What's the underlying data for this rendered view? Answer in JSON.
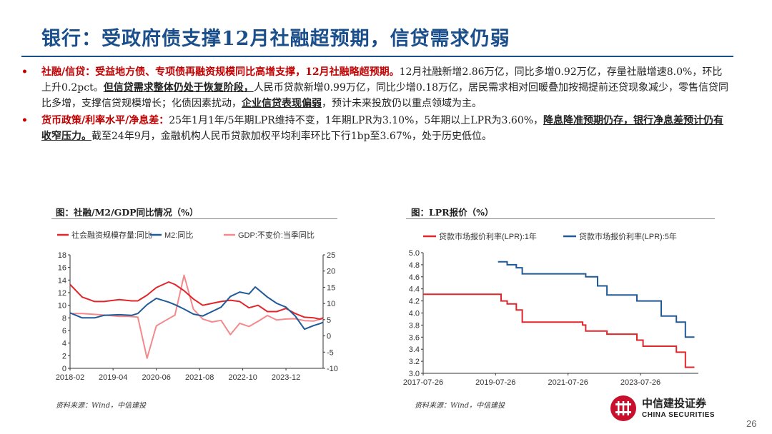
{
  "title": "银行：受政府债支撑12月社融超预期，信贷需求仍弱",
  "bullets": [
    {
      "head": "社融/信贷：受益地方债、专项债再融资规模同比高增支撑，12月社融略超预期。",
      "body1": "12月社融新增2.86万亿，同比多增0.92万亿，存量社融增速8.0%，环比上升0.2pct。",
      "emph1": "但信贷需求整体仍处于恢复阶段，",
      "body2": "人民币贷款新增0.99万亿，同比少增0.18万亿，居民需求相对回暖叠加按揭提前还贷现象减少，零售信贷同比多增，支撑信贷规模增长；化债因素扰动，",
      "emph2": "企业信贷表现偏弱",
      "body3": "，预计未来投放仍以重点领域为主。"
    },
    {
      "head": "货币政策/利率水平/净息差：",
      "body1": "25年1月1年/5年期LPR维持不变，1年期LPR为3.10%，5年期以上LPR为3.60%，",
      "emph1": "降息降准预期仍存，银行净息差预计仍有收窄压力。",
      "body2": "截至24年9月，金融机构人民币贷款加权平均利率环比下行1bp至3.67%，处于历史低位。"
    }
  ],
  "left_chart": {
    "caption": "图：社融/M2/GDP同比情况（%）",
    "source": "资料来源：Wind，中信建投"
  },
  "right_chart": {
    "caption": "图：LPR报价（%）",
    "source": "资料来源：Wind，中信建投"
  },
  "logo": {
    "cn": "中信建投证券",
    "en": "CHINA SECURITIES"
  },
  "page_number": "26",
  "colors": {
    "red": "#e0262b",
    "blue": "#1f5a96",
    "pink": "#f4898c",
    "title": "#1a4f8c"
  },
  "chart_data": [
    {
      "type": "line",
      "title": "",
      "x_tick_labels": [
        "2018-02",
        "2019-04",
        "2020-06",
        "2021-08",
        "2022-10",
        "2023-12"
      ],
      "x_range": [
        "2018-02",
        "2024-12"
      ],
      "y_left": {
        "ticks": [
          0,
          2,
          4,
          6,
          8,
          10,
          12,
          14,
          16,
          18
        ],
        "range": [
          0,
          18
        ]
      },
      "y_right": {
        "ticks": [
          -10,
          -5,
          0,
          5,
          10,
          15,
          20,
          25
        ],
        "range": [
          -10,
          25
        ]
      },
      "legend_position": "top",
      "series": [
        {
          "name": "社会融资规模存量:同比",
          "axis": "left",
          "color": "#e0262b",
          "points": [
            [
              "2018-02",
              13.3
            ],
            [
              "2018-06",
              11.3
            ],
            [
              "2018-10",
              10.6
            ],
            [
              "2019-01",
              10.6
            ],
            [
              "2019-06",
              10.9
            ],
            [
              "2019-10",
              10.7
            ],
            [
              "2019-12",
              10.7
            ],
            [
              "2020-03",
              11.6
            ],
            [
              "2020-06",
              12.8
            ],
            [
              "2020-10",
              13.7
            ],
            [
              "2020-12",
              13.3
            ],
            [
              "2021-03",
              12.3
            ],
            [
              "2021-06",
              11.0
            ],
            [
              "2021-09",
              10.0
            ],
            [
              "2021-12",
              10.3
            ],
            [
              "2022-03",
              10.6
            ],
            [
              "2022-06",
              10.8
            ],
            [
              "2022-09",
              10.6
            ],
            [
              "2022-12",
              9.6
            ],
            [
              "2023-03",
              10.0
            ],
            [
              "2023-06",
              9.0
            ],
            [
              "2023-09",
              9.0
            ],
            [
              "2023-12",
              9.5
            ],
            [
              "2024-03",
              8.7
            ],
            [
              "2024-06",
              8.1
            ],
            [
              "2024-09",
              8.0
            ],
            [
              "2024-11",
              7.8
            ],
            [
              "2024-12",
              8.0
            ]
          ]
        },
        {
          "name": "M2:同比",
          "axis": "left",
          "color": "#1f5a96",
          "points": [
            [
              "2018-02",
              8.8
            ],
            [
              "2018-06",
              8.0
            ],
            [
              "2018-10",
              8.0
            ],
            [
              "2019-01",
              8.4
            ],
            [
              "2019-06",
              8.5
            ],
            [
              "2019-10",
              8.4
            ],
            [
              "2019-12",
              8.7
            ],
            [
              "2020-03",
              10.1
            ],
            [
              "2020-06",
              11.1
            ],
            [
              "2020-10",
              10.5
            ],
            [
              "2020-12",
              10.1
            ],
            [
              "2021-03",
              9.4
            ],
            [
              "2021-06",
              8.6
            ],
            [
              "2021-09",
              8.3
            ],
            [
              "2021-12",
              9.0
            ],
            [
              "2022-03",
              9.7
            ],
            [
              "2022-06",
              11.4
            ],
            [
              "2022-09",
              12.1
            ],
            [
              "2022-12",
              11.8
            ],
            [
              "2023-02",
              12.9
            ],
            [
              "2023-06",
              11.3
            ],
            [
              "2023-09",
              10.3
            ],
            [
              "2023-12",
              9.7
            ],
            [
              "2024-03",
              8.3
            ],
            [
              "2024-06",
              6.2
            ],
            [
              "2024-09",
              6.8
            ],
            [
              "2024-11",
              7.1
            ],
            [
              "2024-12",
              7.3
            ]
          ]
        },
        {
          "name": "GDP:不变价:当季同比",
          "axis": "right",
          "color": "#f4898c",
          "points": [
            [
              "2018-03",
              6.9
            ],
            [
              "2018-06",
              6.9
            ],
            [
              "2018-09",
              6.7
            ],
            [
              "2018-12",
              6.5
            ],
            [
              "2019-03",
              6.3
            ],
            [
              "2019-06",
              6.0
            ],
            [
              "2019-09",
              6.0
            ],
            [
              "2019-12",
              5.8
            ],
            [
              "2020-03",
              -6.9
            ],
            [
              "2020-06",
              3.1
            ],
            [
              "2020-09",
              4.8
            ],
            [
              "2020-12",
              6.4
            ],
            [
              "2021-03",
              18.7
            ],
            [
              "2021-06",
              8.3
            ],
            [
              "2021-09",
              5.2
            ],
            [
              "2021-12",
              4.3
            ],
            [
              "2022-03",
              4.8
            ],
            [
              "2022-06",
              0.4
            ],
            [
              "2022-09",
              3.9
            ],
            [
              "2022-12",
              2.9
            ],
            [
              "2023-03",
              4.5
            ],
            [
              "2023-06",
              6.3
            ],
            [
              "2023-09",
              4.9
            ],
            [
              "2023-12",
              5.2
            ],
            [
              "2024-03",
              5.3
            ],
            [
              "2024-06",
              4.7
            ],
            [
              "2024-09",
              4.6
            ],
            [
              "2024-12",
              5.4
            ]
          ]
        }
      ]
    },
    {
      "type": "line",
      "title": "",
      "x_tick_labels": [
        "2017-07-26",
        "2019-07-26",
        "2021-07-26",
        "2023-07-26"
      ],
      "x_range": [
        "2017-07-26",
        "2025-03-01"
      ],
      "y": {
        "ticks": [
          3.0,
          3.2,
          3.4,
          3.6,
          3.8,
          4.0,
          4.2,
          4.4,
          4.6,
          4.8,
          5.0
        ],
        "range": [
          3.0,
          5.0
        ]
      },
      "legend_position": "top",
      "series": [
        {
          "name": "贷款市场报价利率(LPR):1年",
          "color": "#e0262b",
          "points": [
            [
              "2017-07-26",
              4.31
            ],
            [
              "2019-08-20",
              4.31
            ],
            [
              "2019-09-20",
              4.2
            ],
            [
              "2019-11-20",
              4.15
            ],
            [
              "2020-02-20",
              4.05
            ],
            [
              "2020-04-20",
              3.85
            ],
            [
              "2021-12-20",
              3.8
            ],
            [
              "2022-01-20",
              3.7
            ],
            [
              "2022-08-22",
              3.65
            ],
            [
              "2023-06-20",
              3.55
            ],
            [
              "2023-08-21",
              3.45
            ],
            [
              "2024-07-22",
              3.35
            ],
            [
              "2024-10-21",
              3.1
            ],
            [
              "2025-01-20",
              3.1
            ]
          ]
        },
        {
          "name": "贷款市场报价利率(LPR):5年",
          "color": "#1f5a96",
          "points": [
            [
              "2019-08-20",
              4.85
            ],
            [
              "2019-11-20",
              4.8
            ],
            [
              "2020-02-20",
              4.75
            ],
            [
              "2020-04-20",
              4.65
            ],
            [
              "2022-01-20",
              4.6
            ],
            [
              "2022-05-20",
              4.45
            ],
            [
              "2022-08-22",
              4.3
            ],
            [
              "2023-06-20",
              4.2
            ],
            [
              "2024-02-20",
              3.95
            ],
            [
              "2024-07-22",
              3.85
            ],
            [
              "2024-10-21",
              3.6
            ],
            [
              "2025-01-20",
              3.6
            ]
          ]
        }
      ]
    }
  ]
}
